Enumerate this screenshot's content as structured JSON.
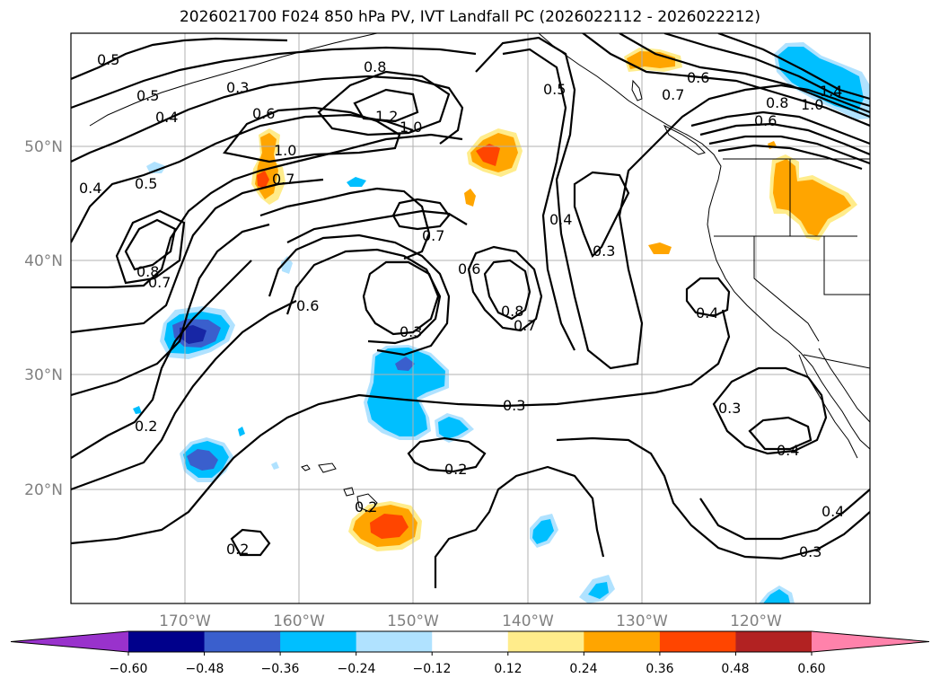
{
  "title": "2026021700 F024 850 hPa PV, IVT Landfall PC (2026022112 - 2026022212)",
  "map": {
    "lat_labels": [
      "50°N",
      "40°N",
      "30°N",
      "20°N"
    ],
    "lon_labels": [
      "170°W",
      "160°W",
      "150°W",
      "140°W",
      "130°W",
      "120°W"
    ],
    "extent": {
      "lon_min": -180,
      "lon_max": -110,
      "lat_min": 10,
      "lat_max": 60
    },
    "grid": true,
    "contour_labels": [
      "0.5",
      "0.5",
      "0.3",
      "0.4",
      "0.6",
      "0.8",
      "1.2",
      "1.0",
      "1.0",
      "0.7",
      "0.5",
      "0.4",
      "0.5",
      "0.7",
      "0.6",
      "0.8",
      "1.4",
      "1.0",
      "0.6",
      "0.8",
      "0.7",
      "0.6",
      "0.4",
      "0.3",
      "0.7",
      "0.6",
      "0.8",
      "0.7",
      "0.3",
      "0.3",
      "0.4",
      "0.2",
      "0.3",
      "0.2",
      "0.4",
      "0.2",
      "0.2",
      "0.4",
      "0.3"
    ]
  },
  "colorbar": {
    "tick_labels": [
      "−0.60",
      "−0.48",
      "−0.36",
      "−0.24",
      "−0.12",
      "0.12",
      "0.24",
      "0.36",
      "0.48",
      "0.60"
    ],
    "colors": [
      "#9932cc",
      "#00008b",
      "#3a5fcd",
      "#00bfff",
      "#b0e2ff",
      "#ffffff",
      "#ffec8b",
      "#ffa500",
      "#ff4500",
      "#b22222",
      "#ff82ab"
    ],
    "extend": "both"
  }
}
